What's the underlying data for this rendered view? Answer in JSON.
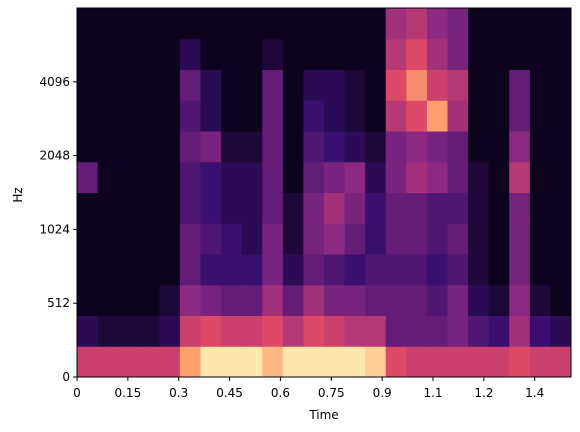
{
  "chart_data": {
    "type": "heatmap",
    "x_label": "Time",
    "y_label": "Hz",
    "xlim": [
      0,
      1.457
    ],
    "xticks": [
      0,
      0.15,
      0.3,
      0.45,
      0.6,
      0.75,
      0.9,
      {
        "value": 1.05,
        "label": "1.1"
      },
      1.2,
      {
        "value": 1.35,
        "label": "1.4"
      }
    ],
    "ylim": [
      0,
      8192
    ],
    "yscale": "symlog",
    "linthresh": 512,
    "yticks": [
      0,
      512,
      1024,
      2048,
      4096
    ],
    "colormap": [
      "#000004",
      "#3b0f70",
      "#8c2981",
      "#de4968",
      "#fe9f6d",
      "#fcfdbf"
    ],
    "z": [
      [
        0.55,
        0.55,
        0.55,
        0.55,
        0.55,
        0.8,
        0.95,
        0.95,
        0.95,
        0.85,
        0.95,
        0.95,
        0.95,
        0.95,
        0.9,
        0.6,
        0.55,
        0.55,
        0.55,
        0.55,
        0.55,
        0.6,
        0.55,
        0.55
      ],
      [
        0.15,
        0.1,
        0.1,
        0.1,
        0.15,
        0.55,
        0.6,
        0.55,
        0.55,
        0.6,
        0.5,
        0.6,
        0.55,
        0.5,
        0.5,
        0.3,
        0.3,
        0.3,
        0.35,
        0.25,
        0.2,
        0.45,
        0.2,
        0.15
      ],
      [
        0.05,
        0.05,
        0.05,
        0.05,
        0.1,
        0.4,
        0.35,
        0.3,
        0.3,
        0.45,
        0.3,
        0.45,
        0.35,
        0.35,
        0.3,
        0.3,
        0.3,
        0.25,
        0.35,
        0.15,
        0.1,
        0.4,
        0.1,
        0.05
      ],
      [
        0.05,
        0.05,
        0.05,
        0.05,
        0.05,
        0.3,
        0.2,
        0.2,
        0.2,
        0.35,
        0.15,
        0.3,
        0.25,
        0.2,
        0.25,
        0.25,
        0.25,
        0.2,
        0.25,
        0.1,
        0.05,
        0.35,
        0.05,
        0.05
      ],
      [
        0.05,
        0.05,
        0.05,
        0.05,
        0.05,
        0.3,
        0.25,
        0.2,
        0.15,
        0.35,
        0.1,
        0.35,
        0.4,
        0.3,
        0.2,
        0.3,
        0.3,
        0.25,
        0.3,
        0.1,
        0.05,
        0.35,
        0.05,
        0.05
      ],
      [
        0.05,
        0.05,
        0.05,
        0.05,
        0.05,
        0.25,
        0.2,
        0.15,
        0.15,
        0.3,
        0.1,
        0.35,
        0.45,
        0.35,
        0.2,
        0.3,
        0.3,
        0.25,
        0.25,
        0.1,
        0.05,
        0.35,
        0.05,
        0.05
      ],
      [
        0.3,
        0.05,
        0.05,
        0.05,
        0.05,
        0.25,
        0.2,
        0.15,
        0.15,
        0.3,
        0.05,
        0.3,
        0.35,
        0.4,
        0.15,
        0.35,
        0.45,
        0.4,
        0.3,
        0.1,
        0.05,
        0.5,
        0.05,
        0.05
      ],
      [
        0.05,
        0.05,
        0.05,
        0.05,
        0.05,
        0.3,
        0.35,
        0.1,
        0.1,
        0.3,
        0.05,
        0.25,
        0.2,
        0.15,
        0.1,
        0.35,
        0.4,
        0.35,
        0.3,
        0.05,
        0.05,
        0.4,
        0.05,
        0.05
      ],
      [
        0.05,
        0.05,
        0.05,
        0.05,
        0.05,
        0.25,
        0.15,
        0.05,
        0.05,
        0.3,
        0.05,
        0.2,
        0.15,
        0.1,
        0.05,
        0.5,
        0.6,
        0.8,
        0.45,
        0.05,
        0.05,
        0.3,
        0.05,
        0.05
      ],
      [
        0.05,
        0.05,
        0.05,
        0.05,
        0.05,
        0.3,
        0.15,
        0.05,
        0.05,
        0.3,
        0.05,
        0.15,
        0.15,
        0.1,
        0.05,
        0.6,
        0.75,
        0.55,
        0.5,
        0.05,
        0.05,
        0.3,
        0.05,
        0.05
      ],
      [
        0.05,
        0.05,
        0.05,
        0.05,
        0.05,
        0.15,
        0.05,
        0.05,
        0.05,
        0.1,
        0.05,
        0.05,
        0.05,
        0.05,
        0.05,
        0.5,
        0.6,
        0.45,
        0.35,
        0.05,
        0.05,
        0.05,
        0.05,
        0.05
      ],
      [
        0.05,
        0.05,
        0.05,
        0.05,
        0.05,
        0.05,
        0.05,
        0.05,
        0.05,
        0.05,
        0.05,
        0.05,
        0.05,
        0.05,
        0.05,
        0.45,
        0.5,
        0.4,
        0.35,
        0.05,
        0.05,
        0.05,
        0.05,
        0.05
      ]
    ]
  }
}
